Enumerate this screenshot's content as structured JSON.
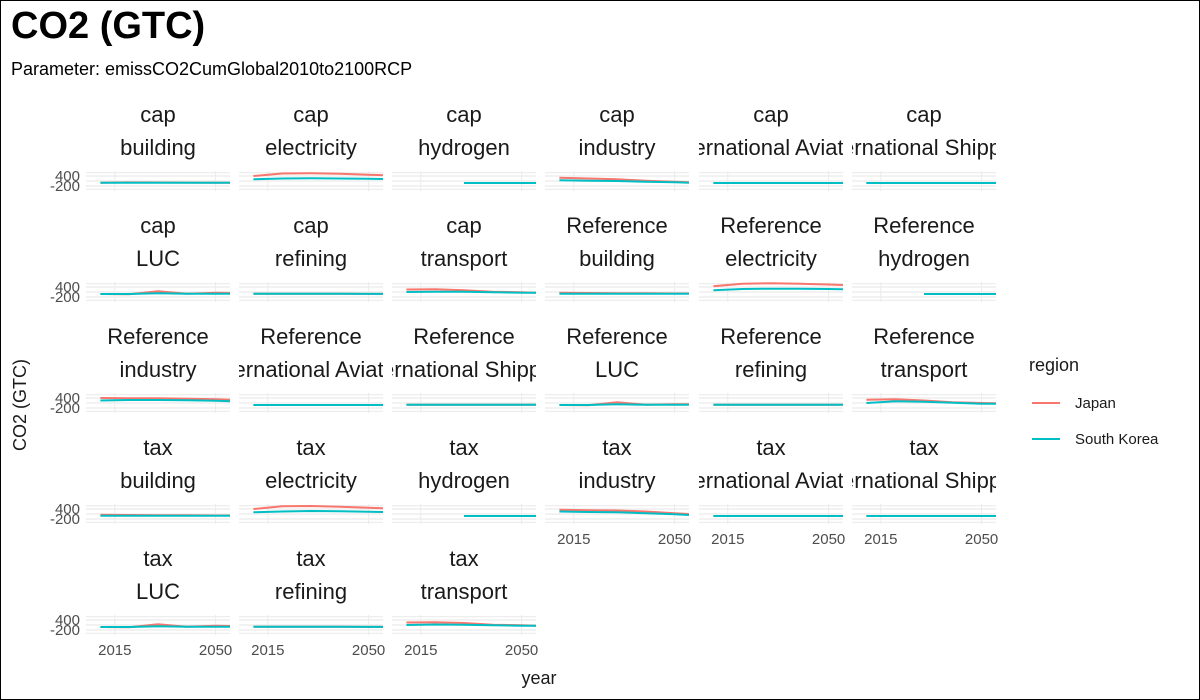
{
  "title": "CO2 (GTC)",
  "subtitle": "Parameter: emissCO2CumGlobal2010to2100RCP",
  "chart_data": {
    "type": "line",
    "title": "CO2 (GTC)",
    "subtitle": "Parameter: emissCO2CumGlobal2010to2100RCP",
    "xlabel": "year",
    "ylabel": "CO2 (GTC)",
    "x_ticks": [
      2015,
      2050
    ],
    "y_ticks": [
      400,
      -200
    ],
    "xlim": [
      2005,
      2055
    ],
    "ylim": [
      -500,
      700
    ],
    "grid": true,
    "legend": {
      "title": "region",
      "placement": "right",
      "entries": [
        {
          "name": "Japan",
          "color": "#F8766D"
        },
        {
          "name": "South Korea",
          "color": "#00BFC4"
        }
      ]
    },
    "x": [
      2010,
      2020,
      2030,
      2040,
      2050,
      2055
    ],
    "panels": [
      {
        "strip": [
          "cap",
          "building"
        ],
        "series": [
          {
            "name": "Japan",
            "values": [
              0,
              15,
              10,
              5,
              0,
              -5
            ]
          },
          {
            "name": "South Korea",
            "values": [
              -10,
              -5,
              -5,
              -10,
              -10,
              -10
            ]
          }
        ]
      },
      {
        "strip": [
          "cap",
          "electricity"
        ],
        "series": [
          {
            "name": "Japan",
            "values": [
              400,
              550,
              560,
              540,
              480,
              450
            ]
          },
          {
            "name": "South Korea",
            "values": [
              200,
              250,
              260,
              250,
              230,
              220
            ]
          }
        ]
      },
      {
        "strip": [
          "cap",
          "hydrogen"
        ],
        "series": [
          {
            "name": "Japan",
            "values": [
              null,
              null,
              -20,
              -20,
              -20,
              -20
            ]
          },
          {
            "name": "South Korea",
            "values": [
              null,
              null,
              -20,
              -20,
              -20,
              -20
            ]
          }
        ]
      },
      {
        "strip": [
          "cap",
          "industry"
        ],
        "series": [
          {
            "name": "Japan",
            "values": [
              300,
              250,
              200,
              120,
              50,
              20
            ]
          },
          {
            "name": "South Korea",
            "values": [
              150,
              120,
              100,
              60,
              20,
              0
            ]
          }
        ]
      },
      {
        "strip": [
          "cap",
          "International Aviation"
        ],
        "series": [
          {
            "name": "Japan",
            "values": [
              -20,
              -20,
              -20,
              -20,
              -20,
              -20
            ]
          },
          {
            "name": "South Korea",
            "values": [
              -20,
              -20,
              -20,
              -20,
              -20,
              -20
            ]
          }
        ]
      },
      {
        "strip": [
          "cap",
          "International Shipping"
        ],
        "series": [
          {
            "name": "Japan",
            "values": [
              -20,
              -20,
              -20,
              -20,
              -20,
              -20
            ]
          },
          {
            "name": "South Korea",
            "values": [
              -20,
              -20,
              -20,
              -20,
              -20,
              -20
            ]
          }
        ]
      },
      {
        "strip": [
          "cap",
          "LUC"
        ],
        "series": [
          {
            "name": "Japan",
            "values": [
              -20,
              -30,
              150,
              0,
              50,
              40
            ]
          },
          {
            "name": "South Korea",
            "values": [
              -20,
              -20,
              20,
              -10,
              0,
              0
            ]
          }
        ]
      },
      {
        "strip": [
          "cap",
          "refining"
        ],
        "series": [
          {
            "name": "Japan",
            "values": [
              -10,
              -10,
              -10,
              -10,
              -15,
              -15
            ]
          },
          {
            "name": "South Korea",
            "values": [
              -10,
              -10,
              -10,
              -10,
              -15,
              -15
            ]
          }
        ]
      },
      {
        "strip": [
          "cap",
          "transport"
        ],
        "series": [
          {
            "name": "Japan",
            "values": [
              250,
              260,
              200,
              120,
              80,
              60
            ]
          },
          {
            "name": "South Korea",
            "values": [
              100,
              120,
              110,
              90,
              60,
              50
            ]
          }
        ]
      },
      {
        "strip": [
          "Reference",
          "building"
        ],
        "series": [
          {
            "name": "Japan",
            "values": [
              50,
              40,
              30,
              20,
              10,
              10
            ]
          },
          {
            "name": "South Korea",
            "values": [
              0,
              0,
              -5,
              -5,
              -10,
              -10
            ]
          }
        ]
      },
      {
        "strip": [
          "Reference",
          "electricity"
        ],
        "series": [
          {
            "name": "Japan",
            "values": [
              450,
              600,
              620,
              600,
              550,
              520
            ]
          },
          {
            "name": "South Korea",
            "values": [
              200,
              280,
              300,
              300,
              280,
              260
            ]
          }
        ]
      },
      {
        "strip": [
          "Reference",
          "hydrogen"
        ],
        "series": [
          {
            "name": "Japan",
            "values": [
              null,
              null,
              -20,
              -20,
              -20,
              -20
            ]
          },
          {
            "name": "South Korea",
            "values": [
              null,
              null,
              -20,
              -20,
              -20,
              -20
            ]
          }
        ]
      },
      {
        "strip": [
          "Reference",
          "industry"
        ],
        "series": [
          {
            "name": "Japan",
            "values": [
              400,
              380,
              380,
              360,
              330,
              300
            ]
          },
          {
            "name": "South Korea",
            "values": [
              250,
              280,
              280,
              260,
              230,
              210
            ]
          }
        ]
      },
      {
        "strip": [
          "Reference",
          "International Aviation"
        ],
        "series": [
          {
            "name": "Japan",
            "values": [
              -20,
              -20,
              -20,
              -20,
              -20,
              -20
            ]
          },
          {
            "name": "South Korea",
            "values": [
              -20,
              -20,
              -20,
              -20,
              -20,
              -20
            ]
          }
        ]
      },
      {
        "strip": [
          "Reference",
          "International Shipping"
        ],
        "series": [
          {
            "name": "Japan",
            "values": [
              -10,
              -10,
              -10,
              -10,
              -10,
              -10
            ]
          },
          {
            "name": "South Korea",
            "values": [
              -10,
              -10,
              -10,
              -10,
              -10,
              -10
            ]
          }
        ]
      },
      {
        "strip": [
          "Reference",
          "LUC"
        ],
        "series": [
          {
            "name": "Japan",
            "values": [
              -20,
              -30,
              150,
              0,
              20,
              20
            ]
          },
          {
            "name": "South Korea",
            "values": [
              -20,
              -20,
              20,
              -10,
              -10,
              -10
            ]
          }
        ]
      },
      {
        "strip": [
          "Reference",
          "refining"
        ],
        "series": [
          {
            "name": "Japan",
            "values": [
              -10,
              -10,
              -10,
              -10,
              -10,
              -10
            ]
          },
          {
            "name": "South Korea",
            "values": [
              -10,
              -10,
              -10,
              -10,
              -10,
              -10
            ]
          }
        ]
      },
      {
        "strip": [
          "Reference",
          "transport"
        ],
        "series": [
          {
            "name": "Japan",
            "values": [
              300,
              320,
              250,
              150,
              100,
              90
            ]
          },
          {
            "name": "South Korea",
            "values": [
              100,
              200,
              180,
              120,
              60,
              50
            ]
          }
        ]
      },
      {
        "strip": [
          "tax",
          "building"
        ],
        "series": [
          {
            "name": "Japan",
            "values": [
              50,
              40,
              30,
              20,
              10,
              10
            ]
          },
          {
            "name": "South Korea",
            "values": [
              0,
              -5,
              -5,
              -10,
              -10,
              -10
            ]
          }
        ]
      },
      {
        "strip": [
          "tax",
          "electricity"
        ],
        "series": [
          {
            "name": "Japan",
            "values": [
              400,
              560,
              580,
              540,
              470,
              440
            ]
          },
          {
            "name": "South Korea",
            "values": [
              200,
              250,
              280,
              270,
              240,
              220
            ]
          }
        ]
      },
      {
        "strip": [
          "tax",
          "hydrogen"
        ],
        "series": [
          {
            "name": "Japan",
            "values": [
              null,
              null,
              -20,
              -20,
              -20,
              -20
            ]
          },
          {
            "name": "South Korea",
            "values": [
              null,
              null,
              -20,
              -20,
              -20,
              -20
            ]
          }
        ]
      },
      {
        "strip": [
          "tax",
          "industry"
        ],
        "series": [
          {
            "name": "Japan",
            "values": [
              350,
              330,
              310,
              250,
              150,
              100
            ]
          },
          {
            "name": "South Korea",
            "values": [
              250,
              220,
              200,
              150,
              80,
              40
            ]
          }
        ]
      },
      {
        "strip": [
          "tax",
          "International Aviation"
        ],
        "series": [
          {
            "name": "Japan",
            "values": [
              -20,
              -20,
              -20,
              -20,
              -20,
              -20
            ]
          },
          {
            "name": "South Korea",
            "values": [
              -20,
              -20,
              -20,
              -20,
              -20,
              -20
            ]
          }
        ]
      },
      {
        "strip": [
          "tax",
          "International Shipping"
        ],
        "series": [
          {
            "name": "Japan",
            "values": [
              -20,
              -20,
              -20,
              -20,
              -20,
              -20
            ]
          },
          {
            "name": "South Korea",
            "values": [
              -20,
              -20,
              -20,
              -20,
              -20,
              -20
            ]
          }
        ]
      },
      {
        "strip": [
          "tax",
          "LUC"
        ],
        "series": [
          {
            "name": "Japan",
            "values": [
              -20,
              -30,
              150,
              0,
              50,
              40
            ]
          },
          {
            "name": "South Korea",
            "values": [
              -20,
              -20,
              20,
              -10,
              0,
              0
            ]
          }
        ]
      },
      {
        "strip": [
          "tax",
          "refining"
        ],
        "series": [
          {
            "name": "Japan",
            "values": [
              -10,
              -10,
              -10,
              -10,
              -15,
              -15
            ]
          },
          {
            "name": "South Korea",
            "values": [
              -10,
              -10,
              -10,
              -10,
              -15,
              -15
            ]
          }
        ]
      },
      {
        "strip": [
          "tax",
          "transport"
        ],
        "series": [
          {
            "name": "Japan",
            "values": [
              250,
              260,
              220,
              120,
              80,
              60
            ]
          },
          {
            "name": "South Korea",
            "values": [
              100,
              130,
              120,
              90,
              60,
              50
            ]
          }
        ]
      }
    ]
  }
}
